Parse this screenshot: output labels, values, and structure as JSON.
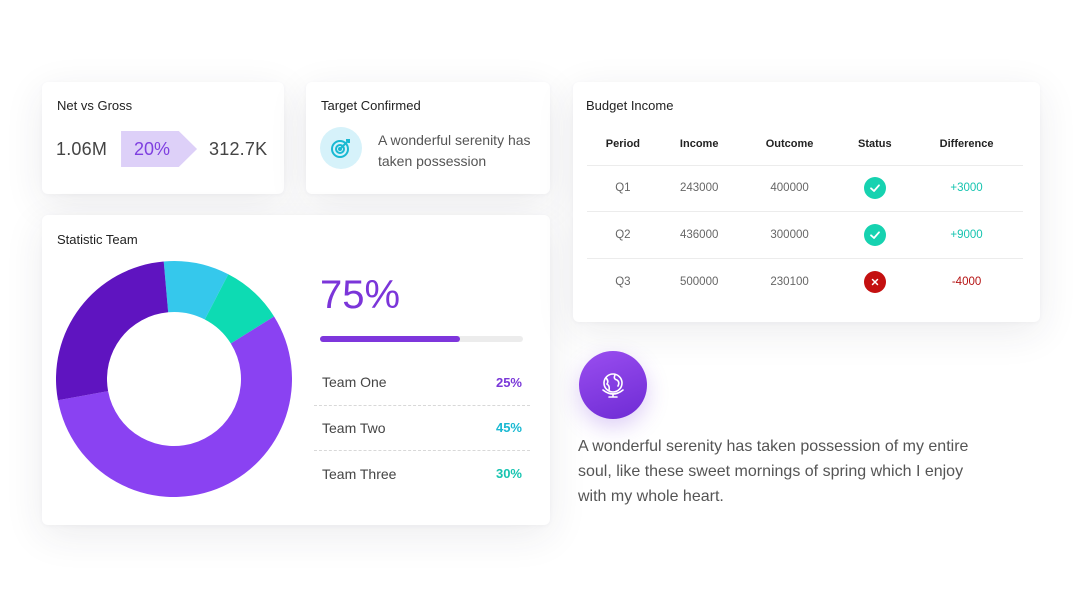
{
  "net_card": {
    "title": "Net vs Gross",
    "net": "1.06M",
    "percent": "20%",
    "gross": "312.7K"
  },
  "target_card": {
    "title": "Target Confirmed",
    "text": "A wonderful serenity has taken possession",
    "icon": "target-icon"
  },
  "stat_card": {
    "title": "Statistic Team",
    "big_percent": "75%",
    "progress": 0.69,
    "teams": [
      {
        "name": "Team One",
        "pct": "25%",
        "color": "#7a38d8"
      },
      {
        "name": "Team Two",
        "pct": "45%",
        "color": "#19b9d2"
      },
      {
        "name": "Team Three",
        "pct": "30%",
        "color": "#16c4b0"
      }
    ],
    "donut_segments": [
      {
        "fraction": 0.09,
        "color": "#35c8ec"
      },
      {
        "fraction": 0.085,
        "color": "#0ddbb3"
      },
      {
        "fraction": 0.56,
        "color": "#8a42f2"
      },
      {
        "fraction": 0.265,
        "color": "#5f14c0"
      }
    ]
  },
  "budget_card": {
    "title": "Budget Income",
    "columns": [
      "Period",
      "Income",
      "Outcome",
      "Status",
      "Difference"
    ],
    "rows": [
      {
        "period": "Q1",
        "income": "243000",
        "outcome": "400000",
        "status": "ok",
        "difference": "+3000",
        "diff_color": "#16c4b0"
      },
      {
        "period": "Q2",
        "income": "436000",
        "outcome": "300000",
        "status": "ok",
        "difference": "+9000",
        "diff_color": "#16c4b0"
      },
      {
        "period": "Q3",
        "income": "500000",
        "outcome": "230100",
        "status": "fail",
        "difference": "-4000",
        "diff_color": "#b51313"
      }
    ],
    "status_colors": {
      "ok": "#16d2b0",
      "fail": "#c41010"
    }
  },
  "feature": {
    "icon": "globe-icon",
    "text": "A wonderful serenity has taken possession of my entire soul, like these sweet mornings of spring which I enjoy with my whole heart."
  }
}
